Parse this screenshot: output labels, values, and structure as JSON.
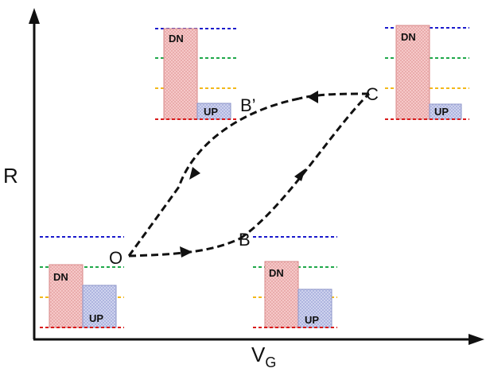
{
  "axes": {
    "y_label": "R",
    "x_label": "V",
    "x_label_subscript": "G"
  },
  "points": {
    "origin": "O",
    "lower": "B",
    "upper": "B’",
    "corner": "C"
  },
  "bars": {
    "dn_label": "DN",
    "up_label": "UP"
  },
  "colors": {
    "dn_fill": "#f4b8b8",
    "dn_stroke": "#d98a8a",
    "up_fill": "#c3c9ea",
    "up_stroke": "#8c95c9",
    "level_blue": "#1a1acc",
    "level_green": "#1fa84a",
    "level_yellow": "#f2b81a",
    "level_red": "#d81a1a",
    "path": "#111111"
  }
}
